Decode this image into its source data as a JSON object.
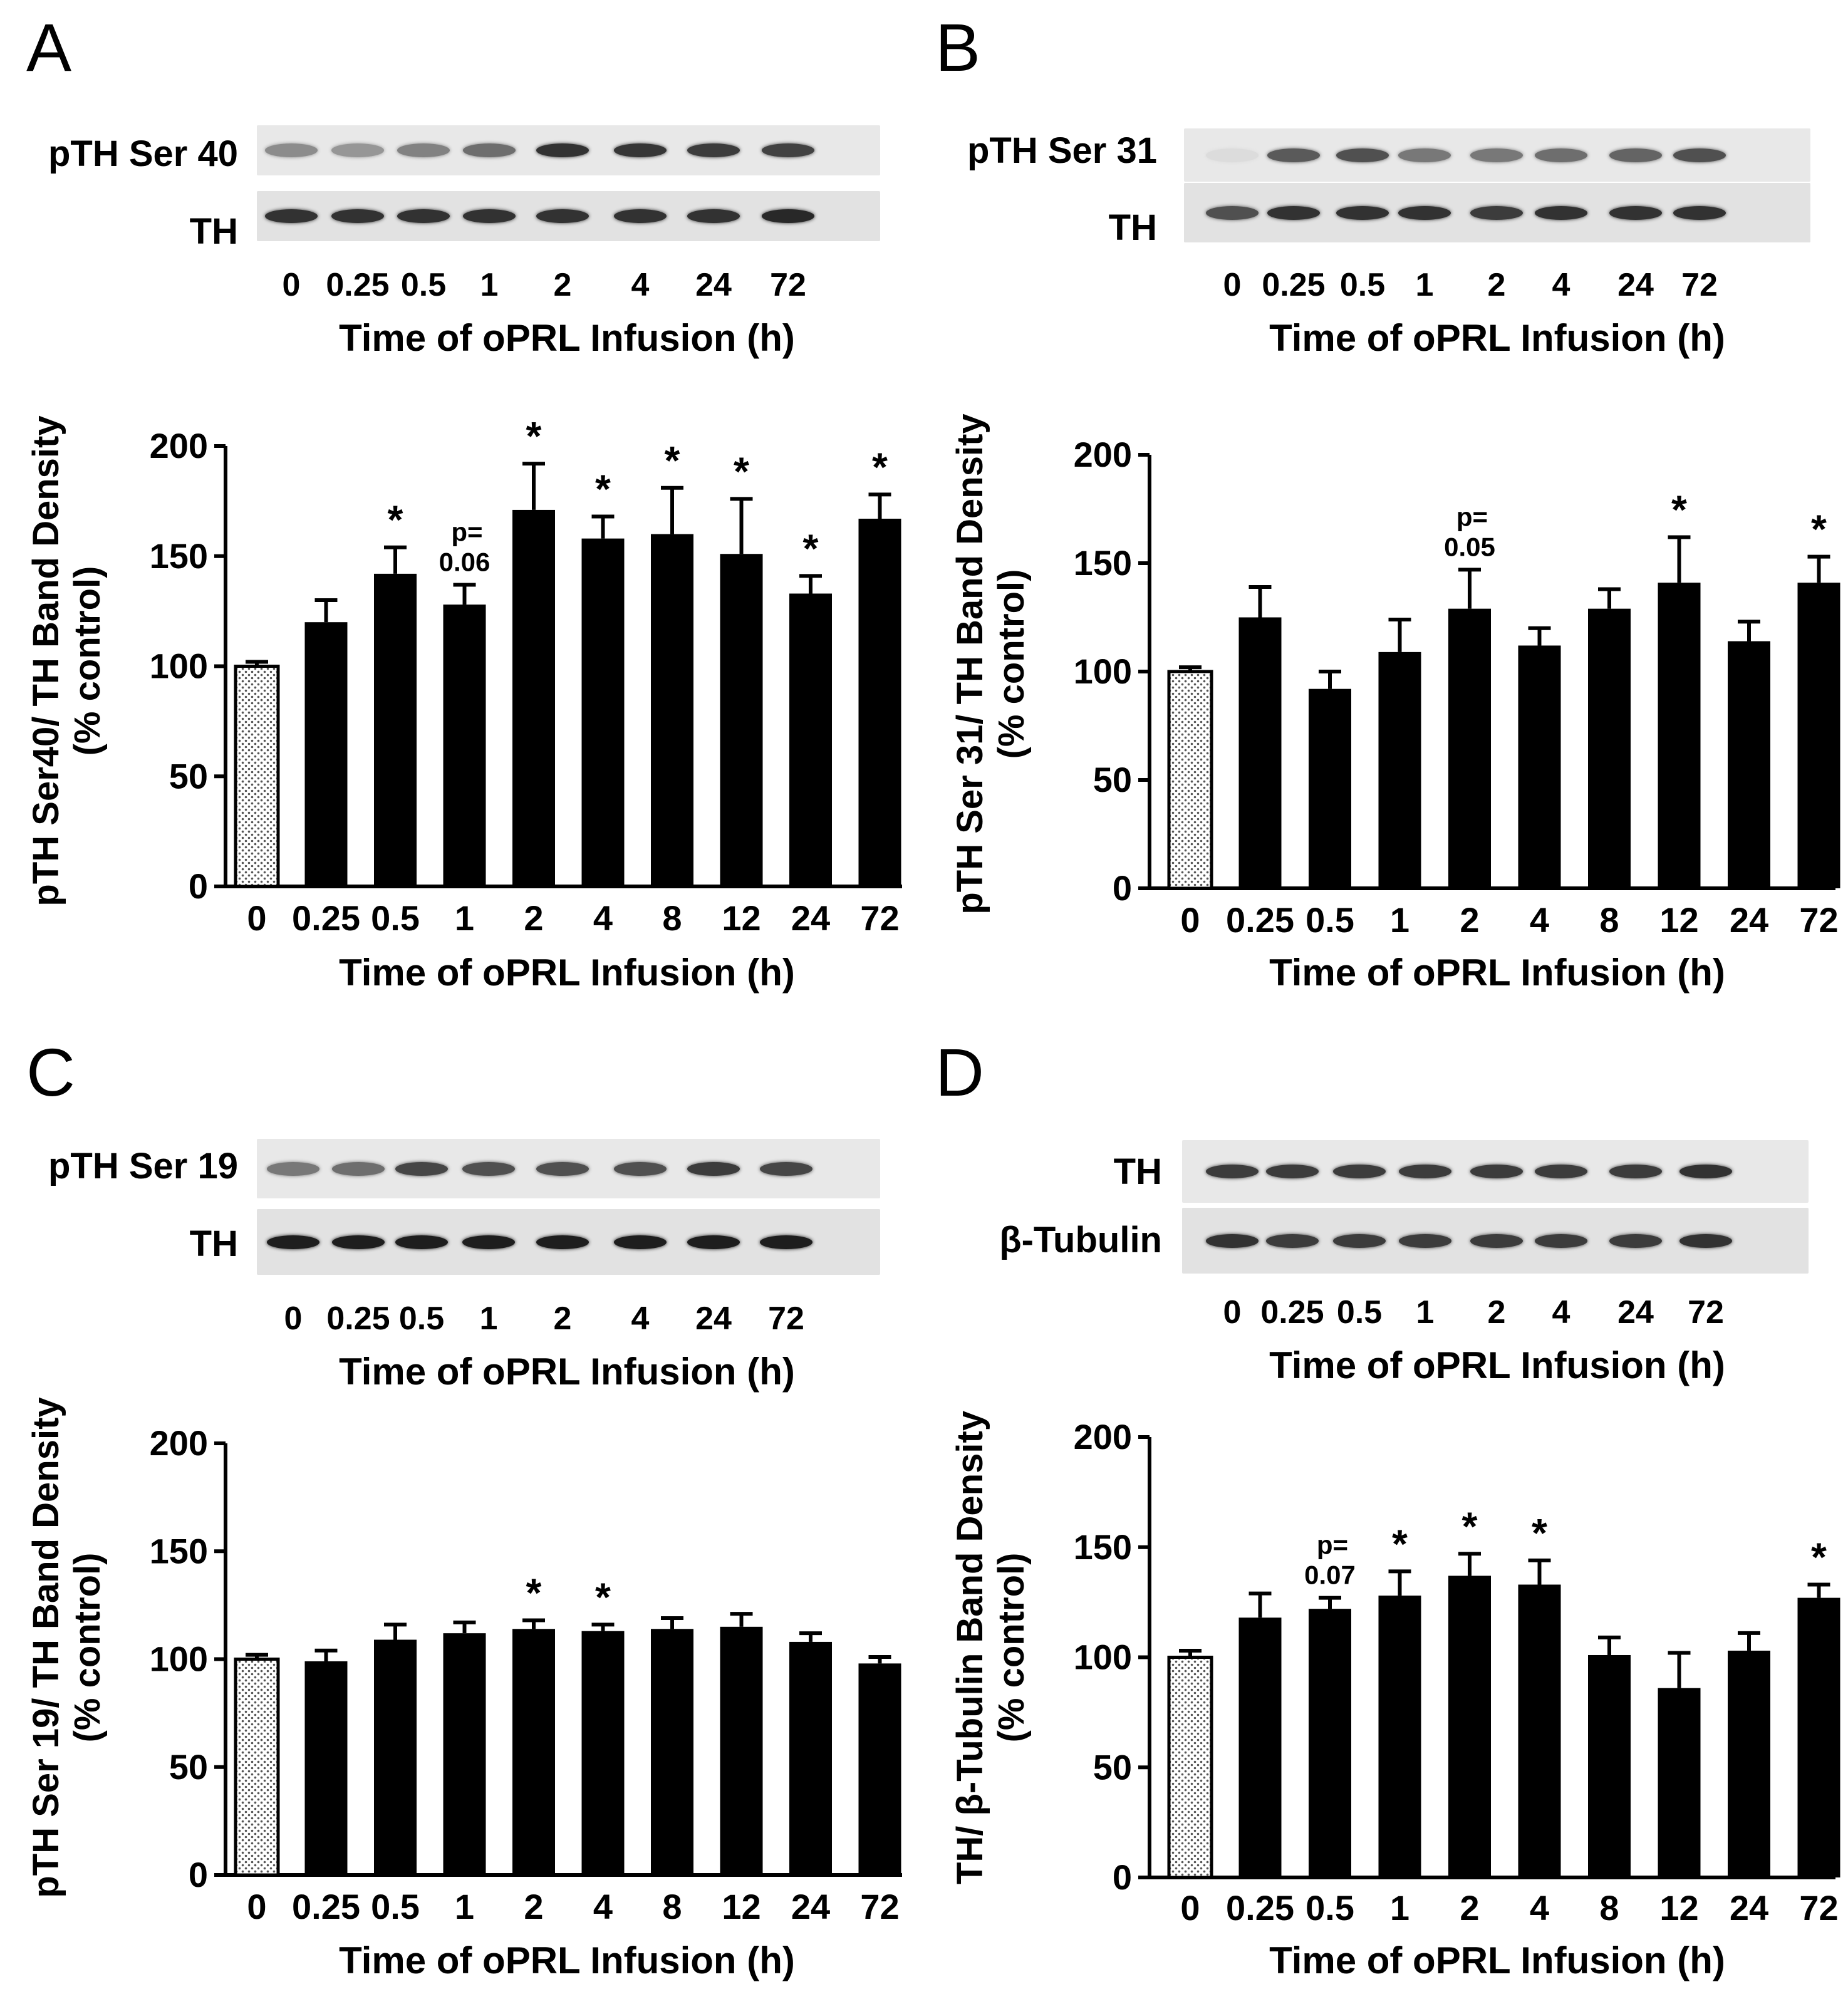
{
  "figure": {
    "panels": [
      {
        "letter": "A",
        "blot": {
          "row_labels": [
            "pTH Ser 40",
            "TH"
          ],
          "lane_labels": [
            "0",
            "0.25",
            "0.5",
            "1",
            "2",
            "4",
            "24",
            "72"
          ],
          "xlabel": "Time of oPRL Infusion (h)",
          "band_intensity": [
            [
              0.45,
              0.4,
              0.5,
              0.6,
              0.9,
              0.88,
              0.85,
              0.82
            ],
            [
              0.9,
              0.9,
              0.9,
              0.9,
              0.9,
              0.9,
              0.9,
              0.95
            ]
          ]
        }
      },
      {
        "letter": "B",
        "blot": {
          "row_labels": [
            "pTH Ser 31",
            "TH"
          ],
          "lane_labels": [
            "0",
            "0.25",
            "0.5",
            "1",
            "2",
            "4",
            "24",
            "72"
          ],
          "xlabel": "Time of oPRL Infusion (h)",
          "band_intensity": [
            [
              0.05,
              0.7,
              0.75,
              0.55,
              0.55,
              0.6,
              0.65,
              0.75
            ],
            [
              0.75,
              0.9,
              0.9,
              0.9,
              0.85,
              0.9,
              0.9,
              0.9
            ]
          ]
        }
      },
      {
        "letter": "C",
        "blot": {
          "row_labels": [
            "pTH Ser 19",
            "TH"
          ],
          "lane_labels": [
            "0",
            "0.25",
            "0.5",
            "1",
            "2",
            "4",
            "24",
            "72"
          ],
          "xlabel": "Time of oPRL Infusion (h)",
          "band_intensity": [
            [
              0.55,
              0.6,
              0.8,
              0.75,
              0.75,
              0.75,
              0.85,
              0.8
            ],
            [
              1.0,
              1.0,
              1.0,
              1.0,
              1.0,
              1.0,
              1.0,
              1.0
            ]
          ]
        }
      },
      {
        "letter": "D",
        "blot": {
          "row_labels": [
            "TH",
            "β-Tubulin"
          ],
          "lane_labels": [
            "0",
            "0.25",
            "0.5",
            "1",
            "2",
            "4",
            "24",
            "72"
          ],
          "xlabel": "Time of oPRL Infusion (h)",
          "band_intensity": [
            [
              0.85,
              0.85,
              0.85,
              0.85,
              0.85,
              0.85,
              0.85,
              0.9
            ],
            [
              0.9,
              0.85,
              0.85,
              0.85,
              0.85,
              0.85,
              0.85,
              0.9
            ]
          ]
        }
      }
    ]
  },
  "chart_data": [
    {
      "type": "bar",
      "panel": "A",
      "title": "",
      "xlabel": "Time of oPRL Infusion (h)",
      "ylabel_line1": "pTH Ser40/ TH Band Density",
      "ylabel_line2": "(% control)",
      "ylim": [
        0,
        200
      ],
      "yticks": [
        0,
        50,
        100,
        150,
        200
      ],
      "categories": [
        "0",
        "0.25",
        "0.5",
        "1",
        "2",
        "4",
        "8",
        "12",
        "24",
        "72"
      ],
      "values": [
        100,
        120,
        142,
        128,
        171,
        158,
        160,
        151,
        133,
        167
      ],
      "errors": [
        2,
        10,
        12,
        9,
        21,
        10,
        21,
        25,
        8,
        11
      ],
      "annotations": [
        "",
        "",
        "*",
        "p=|0.06",
        "*",
        "*",
        "*",
        "*",
        "*",
        "*"
      ],
      "bar_color": "#000000",
      "control_pattern": "dotted"
    },
    {
      "type": "bar",
      "panel": "B",
      "title": "",
      "xlabel": "Time of oPRL Infusion (h)",
      "ylabel_line1": "pTH Ser 31/ TH Band Density",
      "ylabel_line2": "(% control)",
      "ylim": [
        0,
        200
      ],
      "yticks": [
        0,
        50,
        100,
        150,
        200
      ],
      "categories": [
        "0",
        "0.25",
        "0.5",
        "1",
        "2",
        "4",
        "8",
        "12",
        "24",
        "72"
      ],
      "values": [
        100,
        125,
        92,
        109,
        129,
        112,
        129,
        141,
        114,
        141
      ],
      "errors": [
        2,
        14,
        8,
        15,
        18,
        8,
        9,
        21,
        9,
        12
      ],
      "annotations": [
        "",
        "",
        "",
        "",
        "p=|0.05",
        "",
        "",
        "*",
        "",
        "*"
      ],
      "bar_color": "#000000",
      "control_pattern": "dotted"
    },
    {
      "type": "bar",
      "panel": "C",
      "title": "",
      "xlabel": "Time of oPRL Infusion (h)",
      "ylabel_line1": "pTH Ser 19/ TH Band Density",
      "ylabel_line2": "(% control)",
      "ylim": [
        0,
        200
      ],
      "yticks": [
        0,
        50,
        100,
        150,
        200
      ],
      "categories": [
        "0",
        "0.25",
        "0.5",
        "1",
        "2",
        "4",
        "8",
        "12",
        "24",
        "72"
      ],
      "values": [
        100,
        99,
        109,
        112,
        114,
        113,
        114,
        115,
        108,
        98
      ],
      "errors": [
        2,
        5,
        7,
        5,
        4,
        3,
        5,
        6,
        4,
        3
      ],
      "annotations": [
        "",
        "",
        "",
        "",
        "*",
        "*",
        "",
        "",
        "",
        ""
      ],
      "bar_color": "#000000",
      "control_pattern": "dotted"
    },
    {
      "type": "bar",
      "panel": "D",
      "title": "",
      "xlabel": "Time of oPRL Infusion (h)",
      "ylabel_line1": "TH/ β-Tubulin Band Density",
      "ylabel_line2": "(% control)",
      "ylim": [
        0,
        200
      ],
      "yticks": [
        0,
        50,
        100,
        150,
        200
      ],
      "categories": [
        "0",
        "0.25",
        "0.5",
        "1",
        "2",
        "4",
        "8",
        "12",
        "24",
        "72"
      ],
      "values": [
        100,
        118,
        122,
        128,
        137,
        133,
        101,
        86,
        103,
        127
      ],
      "errors": [
        3,
        11,
        5,
        11,
        10,
        11,
        8,
        16,
        8,
        6
      ],
      "annotations": [
        "",
        "",
        "p=|0.07",
        "*",
        "*",
        "*",
        "",
        "",
        "",
        "*"
      ],
      "bar_color": "#000000",
      "control_pattern": "dotted"
    }
  ]
}
